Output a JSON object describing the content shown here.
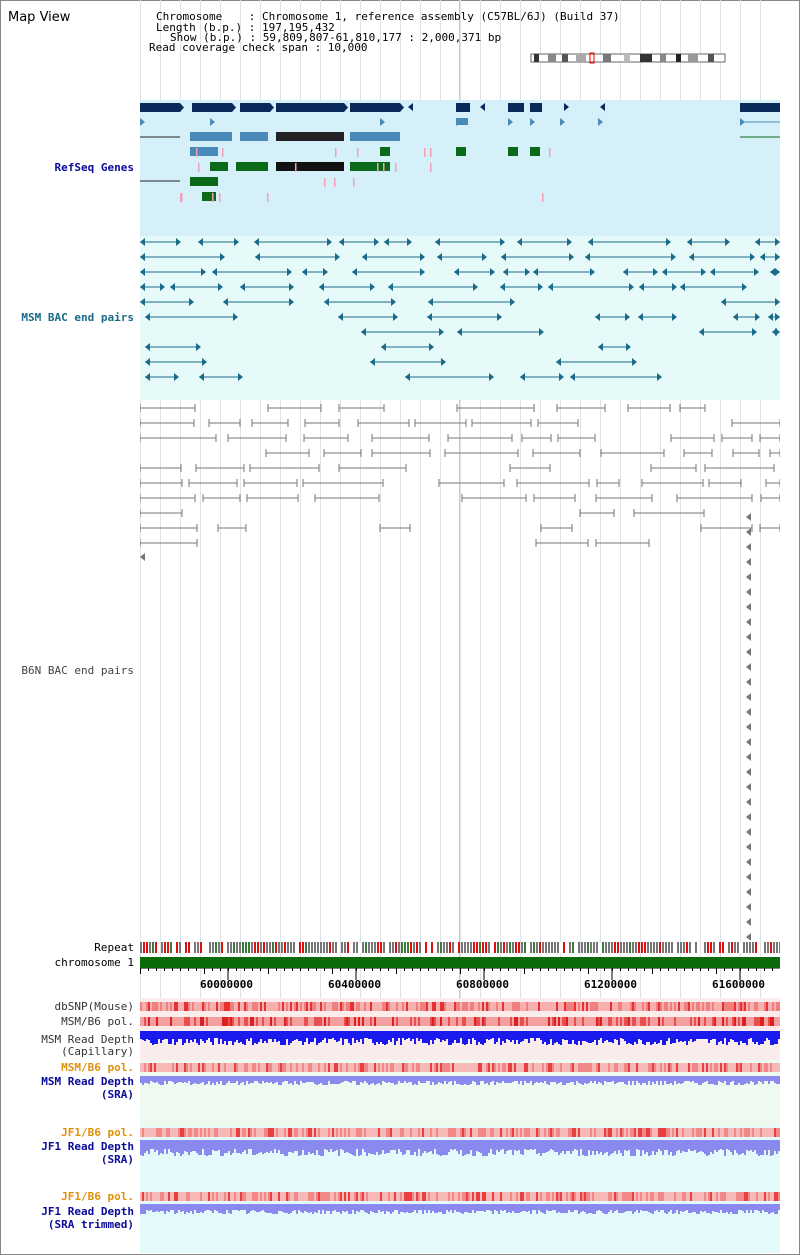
{
  "header": {
    "title": "Map View",
    "info_lines": [
      "Chromosome    : Chromosome 1, reference assembly (C57BL/6J) (Build 37)",
      "Length (b.p.) : 197,195,432",
      "Show (b.p.) : 59,809,807-61,810,177 : 2,000,371 bp",
      "Read coverage check span : 10,000"
    ]
  },
  "tracks": {
    "refseq": "RefSeq Genes",
    "msm_bac": "MSM BAC end pairs",
    "b6n_bac": "B6N BAC end pairs",
    "repeat": "Repeat",
    "chromosome": "chromosome 1",
    "dbsnp": "dbSNP(Mouse)",
    "msm_b6_pol": "MSM/B6 pol.",
    "msm_depth_cap_1": "MSM Read Depth",
    "msm_depth_cap_2": "(Capillary)",
    "msm_b6_pol2": "MSM/B6 pol.",
    "msm_depth_sra_1": "MSM Read Depth",
    "msm_depth_sra_2": "(SRA)",
    "jf1_b6_pol": "JF1/B6 pol.",
    "jf1_depth_sra_1": "JF1 Read Depth",
    "jf1_depth_sra_2": "(SRA)",
    "jf1_b6_pol2": "JF1/B6 pol.",
    "jf1_depth_trim_1": "JF1 Read Depth",
    "jf1_depth_trim_2": "(SRA trimmed)"
  },
  "ruler": {
    "ticks": [
      "60000000",
      "60400000",
      "60800000",
      "61200000",
      "61600000"
    ]
  },
  "colors": {
    "refseq_bg": "#d6f0fa",
    "msm_bg": "#e6fafa",
    "gene_dark": "#0a2a5a",
    "gene_mid": "#4a8ab8",
    "gene_green": "#0a6a1a",
    "bac_teal": "#1a6a8a",
    "bac_gray": "#777777",
    "chrom_green": "#0a6a0a",
    "label_blue": "#0a0a9a",
    "label_orange": "#e0900a",
    "depth_blue": "#1a1aee",
    "depth_light": "#8a8aee"
  }
}
